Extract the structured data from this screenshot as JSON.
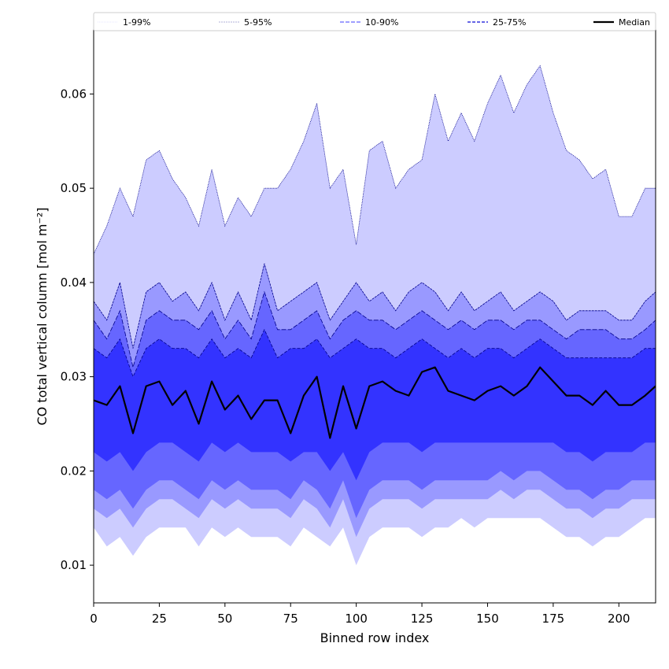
{
  "chart_data": {
    "type": "area",
    "xlabel": "Binned row index",
    "ylabel": "CO total vertical column [mol m⁻²]",
    "xlim": [
      0,
      214
    ],
    "ylim": [
      0.006,
      0.0668
    ],
    "x_ticks": [
      0,
      25,
      50,
      75,
      100,
      125,
      150,
      175,
      200
    ],
    "y_ticks": [
      0.01,
      0.02,
      0.03,
      0.04,
      0.05,
      0.06
    ],
    "x_tick_labels": [
      "0",
      "25",
      "50",
      "75",
      "100",
      "125",
      "150",
      "175",
      "200"
    ],
    "y_tick_labels": [
      "0.01",
      "0.02",
      "0.03",
      "0.04",
      "0.05",
      "0.06"
    ],
    "grid": false,
    "legend_position": "top",
    "legend": [
      "1-99%",
      "5-95%",
      "10-90%",
      "25-75%",
      "Median"
    ],
    "colors": {
      "band_1_99": "#ccccff",
      "band_5_95": "#9999ff",
      "band_10_90": "#6666ff",
      "band_25_75": "#3333ff",
      "median": "#000000",
      "edge": "#00008b"
    },
    "x": [
      0,
      5,
      10,
      15,
      20,
      25,
      30,
      35,
      40,
      45,
      50,
      55,
      60,
      65,
      70,
      75,
      80,
      85,
      90,
      95,
      100,
      105,
      110,
      115,
      120,
      125,
      130,
      135,
      140,
      145,
      150,
      155,
      160,
      165,
      170,
      175,
      180,
      185,
      190,
      195,
      200,
      205,
      210,
      214
    ],
    "series": [
      {
        "name": "1-99%",
        "kind": "band",
        "upper": [
          0.043,
          0.046,
          0.05,
          0.047,
          0.053,
          0.054,
          0.051,
          0.049,
          0.046,
          0.052,
          0.046,
          0.049,
          0.047,
          0.05,
          0.05,
          0.052,
          0.055,
          0.059,
          0.05,
          0.052,
          0.044,
          0.054,
          0.055,
          0.05,
          0.052,
          0.053,
          0.06,
          0.055,
          0.058,
          0.055,
          0.059,
          0.062,
          0.058,
          0.061,
          0.063,
          0.058,
          0.054,
          0.053,
          0.051,
          0.052,
          0.047,
          0.047,
          0.05,
          0.05
        ],
        "lower": [
          0.014,
          0.012,
          0.013,
          0.011,
          0.013,
          0.014,
          0.014,
          0.014,
          0.012,
          0.014,
          0.013,
          0.014,
          0.013,
          0.013,
          0.013,
          0.012,
          0.014,
          0.013,
          0.012,
          0.014,
          0.01,
          0.013,
          0.014,
          0.014,
          0.014,
          0.013,
          0.014,
          0.014,
          0.015,
          0.014,
          0.015,
          0.015,
          0.015,
          0.015,
          0.015,
          0.014,
          0.013,
          0.013,
          0.012,
          0.013,
          0.013,
          0.014,
          0.015,
          0.015
        ]
      },
      {
        "name": "5-95%",
        "kind": "band",
        "upper": [
          0.038,
          0.036,
          0.04,
          0.033,
          0.039,
          0.04,
          0.038,
          0.039,
          0.037,
          0.04,
          0.036,
          0.039,
          0.036,
          0.042,
          0.037,
          0.038,
          0.039,
          0.04,
          0.036,
          0.038,
          0.04,
          0.038,
          0.039,
          0.037,
          0.039,
          0.04,
          0.039,
          0.037,
          0.039,
          0.037,
          0.038,
          0.039,
          0.037,
          0.038,
          0.039,
          0.038,
          0.036,
          0.037,
          0.037,
          0.037,
          0.036,
          0.036,
          0.038,
          0.039
        ],
        "lower": [
          0.016,
          0.015,
          0.016,
          0.014,
          0.016,
          0.017,
          0.017,
          0.016,
          0.015,
          0.017,
          0.016,
          0.017,
          0.016,
          0.016,
          0.016,
          0.015,
          0.017,
          0.016,
          0.014,
          0.017,
          0.013,
          0.016,
          0.017,
          0.017,
          0.017,
          0.016,
          0.017,
          0.017,
          0.017,
          0.017,
          0.017,
          0.018,
          0.017,
          0.018,
          0.018,
          0.017,
          0.016,
          0.016,
          0.015,
          0.016,
          0.016,
          0.017,
          0.017,
          0.017
        ]
      },
      {
        "name": "10-90%",
        "kind": "band",
        "upper": [
          0.036,
          0.034,
          0.037,
          0.031,
          0.036,
          0.037,
          0.036,
          0.036,
          0.035,
          0.037,
          0.034,
          0.036,
          0.034,
          0.039,
          0.035,
          0.035,
          0.036,
          0.037,
          0.034,
          0.036,
          0.037,
          0.036,
          0.036,
          0.035,
          0.036,
          0.037,
          0.036,
          0.035,
          0.036,
          0.035,
          0.036,
          0.036,
          0.035,
          0.036,
          0.036,
          0.035,
          0.034,
          0.035,
          0.035,
          0.035,
          0.034,
          0.034,
          0.035,
          0.036
        ],
        "lower": [
          0.018,
          0.017,
          0.018,
          0.016,
          0.018,
          0.019,
          0.019,
          0.018,
          0.017,
          0.019,
          0.018,
          0.019,
          0.018,
          0.018,
          0.018,
          0.017,
          0.019,
          0.018,
          0.016,
          0.019,
          0.015,
          0.018,
          0.019,
          0.019,
          0.019,
          0.018,
          0.019,
          0.019,
          0.019,
          0.019,
          0.019,
          0.02,
          0.019,
          0.02,
          0.02,
          0.019,
          0.018,
          0.018,
          0.017,
          0.018,
          0.018,
          0.019,
          0.019,
          0.019
        ]
      },
      {
        "name": "25-75%",
        "kind": "band",
        "upper": [
          0.033,
          0.032,
          0.034,
          0.03,
          0.033,
          0.034,
          0.033,
          0.033,
          0.032,
          0.034,
          0.032,
          0.033,
          0.032,
          0.035,
          0.032,
          0.033,
          0.033,
          0.034,
          0.032,
          0.033,
          0.034,
          0.033,
          0.033,
          0.032,
          0.033,
          0.034,
          0.033,
          0.032,
          0.033,
          0.032,
          0.033,
          0.033,
          0.032,
          0.033,
          0.034,
          0.033,
          0.032,
          0.032,
          0.032,
          0.032,
          0.032,
          0.032,
          0.033,
          0.033
        ],
        "lower": [
          0.022,
          0.021,
          0.022,
          0.02,
          0.022,
          0.023,
          0.023,
          0.022,
          0.021,
          0.023,
          0.022,
          0.023,
          0.022,
          0.022,
          0.022,
          0.021,
          0.022,
          0.022,
          0.02,
          0.022,
          0.019,
          0.022,
          0.023,
          0.023,
          0.023,
          0.022,
          0.023,
          0.023,
          0.023,
          0.023,
          0.023,
          0.023,
          0.023,
          0.023,
          0.023,
          0.023,
          0.022,
          0.022,
          0.021,
          0.022,
          0.022,
          0.022,
          0.023,
          0.023
        ]
      },
      {
        "name": "Median",
        "kind": "line",
        "values": [
          0.0275,
          0.027,
          0.029,
          0.024,
          0.029,
          0.0295,
          0.027,
          0.0285,
          0.025,
          0.0295,
          0.0265,
          0.028,
          0.0255,
          0.0275,
          0.0275,
          0.024,
          0.028,
          0.03,
          0.0235,
          0.029,
          0.0245,
          0.029,
          0.0295,
          0.0285,
          0.028,
          0.0305,
          0.031,
          0.0285,
          0.028,
          0.0275,
          0.0285,
          0.029,
          0.028,
          0.029,
          0.031,
          0.0295,
          0.028,
          0.028,
          0.027,
          0.0285,
          0.027,
          0.027,
          0.028,
          0.029
        ]
      }
    ]
  }
}
